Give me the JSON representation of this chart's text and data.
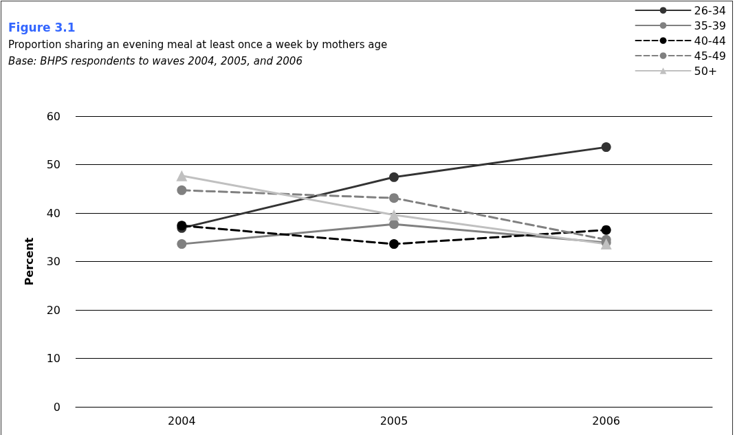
{
  "chart_data": {
    "type": "line",
    "title": "Figure 3.1",
    "subtitle": "Proportion sharing an evening meal at least once a week by mothers age",
    "annotations": [
      "Base: BHPS respondents to waves 2004, 2005, and 2006"
    ],
    "ylabel": "Percent",
    "categories": [
      "2004",
      "2005",
      "2006"
    ],
    "series": [
      {
        "name": "26-34",
        "color": "#333333",
        "values": [
          36.9,
          47.4,
          53.6
        ],
        "marker": "circle",
        "line_style": "solid"
      },
      {
        "name": "35-39",
        "color": "#808080",
        "values": [
          33.6,
          37.7,
          33.9
        ],
        "marker": "circle",
        "line_style": "solid"
      },
      {
        "name": "40-44",
        "color": "#000000",
        "values": [
          37.4,
          33.6,
          36.5
        ],
        "marker": "circle",
        "line_style": "dashed"
      },
      {
        "name": "45-49",
        "color": "#808080",
        "values": [
          44.7,
          43.1,
          34.5
        ],
        "marker": "circle",
        "line_style": "dashed"
      },
      {
        "name": "50+",
        "color": "#c0c0c0",
        "values": [
          47.7,
          39.6,
          33.6
        ],
        "marker": "triangle",
        "line_style": "solid"
      }
    ],
    "ylim": [
      0,
      60
    ],
    "yticks": [
      0,
      10,
      20,
      30,
      40,
      50,
      60
    ],
    "grid": "y",
    "legend": "top right"
  }
}
